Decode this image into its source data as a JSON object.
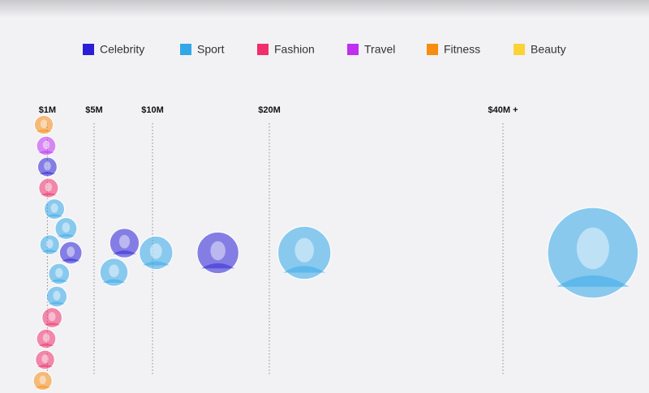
{
  "chart_data": {
    "type": "bubble",
    "series": [
      {
        "name": "Celebrity",
        "color": "#2a1fd6",
        "values": [
          1.0,
          3.0,
          7.6,
          15.6
        ]
      },
      {
        "name": "Sport",
        "color": "#33a7e8",
        "values": [
          2.0,
          1.8,
          2.6,
          1.2,
          1.6,
          6.7,
          10.3,
          23,
          47.7
        ]
      },
      {
        "name": "Fashion",
        "color": "#f0306a",
        "values": [
          1.4,
          0.9,
          1.1,
          0.8
        ]
      },
      {
        "name": "Travel",
        "color": "#c02ff0",
        "values": [
          0.9
        ]
      },
      {
        "name": "Fitness",
        "color": "#f78c10",
        "values": [
          0.6,
          0.7
        ]
      },
      {
        "name": "Beauty",
        "color": "#fbd334",
        "values": []
      }
    ],
    "xlim": [
      0,
      52.5
    ],
    "xticks": [
      {
        "value": 1,
        "label": "$1M"
      },
      {
        "value": 5,
        "label": "$5M"
      },
      {
        "value": 10,
        "label": "$10M"
      },
      {
        "value": 20,
        "label": "$20M"
      },
      {
        "value": 40,
        "label": "$40M +"
      }
    ],
    "grid": true
  }
}
